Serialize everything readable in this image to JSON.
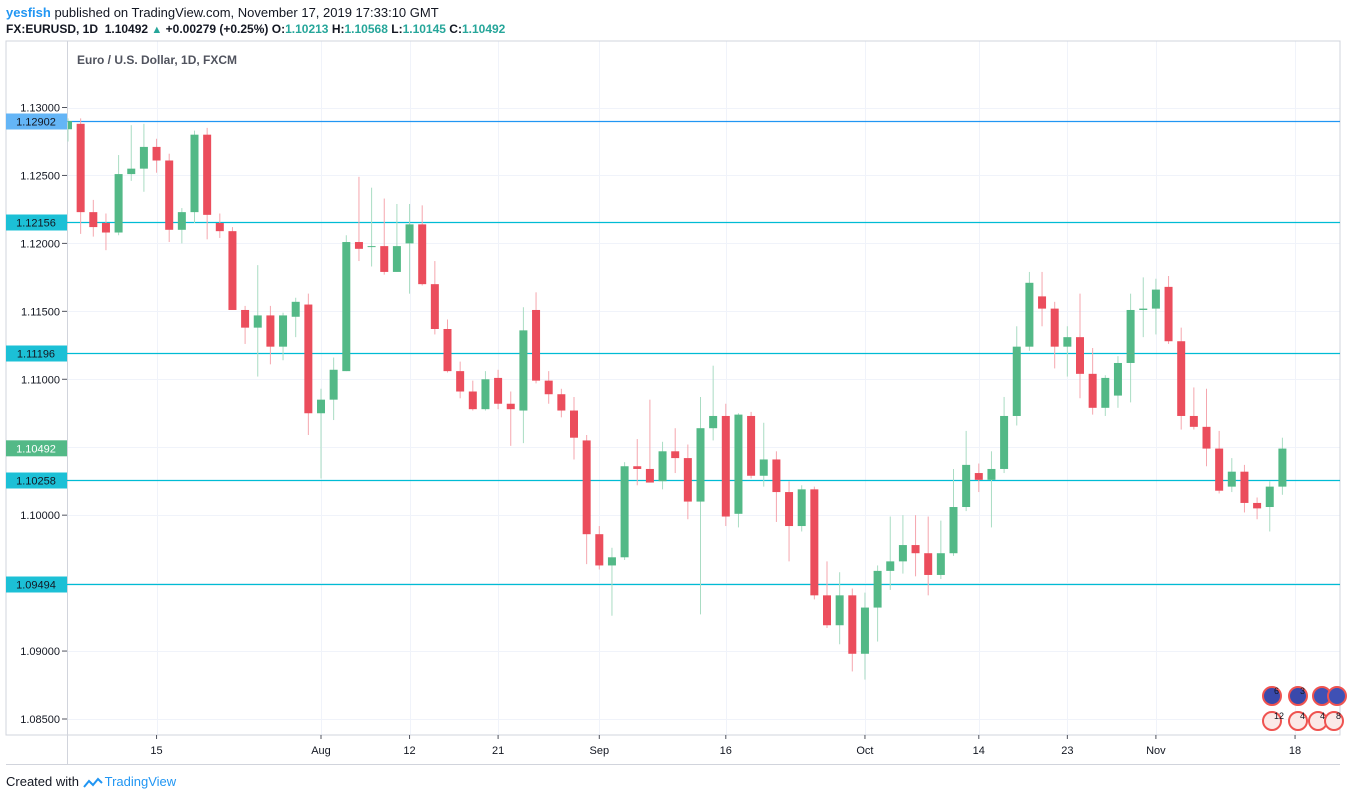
{
  "header": {
    "author": "yesfish",
    "published_text": "published on TradingView.com, November 17, 2019 17:33:10 GMT",
    "symbol": "FX:EURUSD, 1D",
    "last_price": "1.10492",
    "up_arrow": "▲",
    "change": "+0.00279 (+0.25%)",
    "o_label": "O:",
    "o_value": "1.10213",
    "h_label": "H:",
    "h_value": "1.10568",
    "l_label": "L:",
    "l_value": "1.10145",
    "c_label": "C:",
    "c_value": "1.10492"
  },
  "footer": {
    "created_with": "Created with",
    "brand": "TradingView"
  },
  "colors": {
    "up": "#53b987",
    "down": "#eb4d5c",
    "hline": "#00bcd4",
    "top_hline": "#2196f3",
    "grid": "#f0f3fa",
    "last_price_bg": "#53b987"
  },
  "chart_data": {
    "type": "candlestick",
    "title": "Euro / U.S. Dollar, 1D, FXCM",
    "ylim": [
      1.0835,
      1.1325
    ],
    "y_ticks": [
      "1.13000",
      "1.12500",
      "1.12000",
      "1.11500",
      "1.11000",
      "1.10500",
      "1.10000",
      "1.09500",
      "1.09000",
      "1.08500"
    ],
    "x_ticks": [
      {
        "label": "15",
        "date": "2019-07-15"
      },
      {
        "label": "Aug",
        "date": "2019-08-01"
      },
      {
        "label": "12",
        "date": "2019-08-12"
      },
      {
        "label": "21",
        "date": "2019-08-21"
      },
      {
        "label": "Sep",
        "date": "2019-09-02"
      },
      {
        "label": "16",
        "date": "2019-09-16"
      },
      {
        "label": "Oct",
        "date": "2019-10-01"
      },
      {
        "label": "14",
        "date": "2019-10-14"
      },
      {
        "label": "23",
        "date": "2019-10-23"
      },
      {
        "label": "Nov",
        "date": "2019-11-01"
      },
      {
        "label": "18",
        "date": "2019-11-18"
      }
    ],
    "horizontal_lines": [
      {
        "value": "1.12902",
        "style": "top"
      },
      {
        "value": "1.12156",
        "style": "level"
      },
      {
        "value": "1.11196",
        "style": "level"
      },
      {
        "value": "1.10258",
        "style": "level"
      },
      {
        "value": "1.09494",
        "style": "level"
      }
    ],
    "last_price_label": "1.10492",
    "candles": [
      {
        "date": "2019-07-04",
        "o": 1.1284,
        "h": 1.1292,
        "l": 1.1275,
        "c": 1.129
      },
      {
        "date": "2019-07-05",
        "o": 1.1288,
        "h": 1.1292,
        "l": 1.1207,
        "c": 1.1223
      },
      {
        "date": "2019-07-08",
        "o": 1.1223,
        "h": 1.1232,
        "l": 1.1205,
        "c": 1.1212
      },
      {
        "date": "2019-07-09",
        "o": 1.1215,
        "h": 1.1222,
        "l": 1.1195,
        "c": 1.1208
      },
      {
        "date": "2019-07-10",
        "o": 1.1208,
        "h": 1.1265,
        "l": 1.1206,
        "c": 1.1251
      },
      {
        "date": "2019-07-11",
        "o": 1.1251,
        "h": 1.1287,
        "l": 1.1246,
        "c": 1.1255
      },
      {
        "date": "2019-07-12",
        "o": 1.1255,
        "h": 1.1288,
        "l": 1.1238,
        "c": 1.1271
      },
      {
        "date": "2019-07-15",
        "o": 1.1271,
        "h": 1.1277,
        "l": 1.1252,
        "c": 1.1261
      },
      {
        "date": "2019-07-16",
        "o": 1.1261,
        "h": 1.1266,
        "l": 1.1201,
        "c": 1.121
      },
      {
        "date": "2019-07-17",
        "o": 1.121,
        "h": 1.1226,
        "l": 1.12,
        "c": 1.1223
      },
      {
        "date": "2019-07-18",
        "o": 1.1223,
        "h": 1.1283,
        "l": 1.1215,
        "c": 1.128
      },
      {
        "date": "2019-07-19",
        "o": 1.128,
        "h": 1.1285,
        "l": 1.1203,
        "c": 1.1221
      },
      {
        "date": "2019-07-22",
        "o": 1.1215,
        "h": 1.1222,
        "l": 1.1204,
        "c": 1.1209
      },
      {
        "date": "2019-07-23",
        "o": 1.1209,
        "h": 1.1212,
        "l": 1.1153,
        "c": 1.1151
      },
      {
        "date": "2019-07-24",
        "o": 1.1151,
        "h": 1.1154,
        "l": 1.1126,
        "c": 1.1138
      },
      {
        "date": "2019-07-25",
        "o": 1.1138,
        "h": 1.1184,
        "l": 1.1102,
        "c": 1.1147
      },
      {
        "date": "2019-07-26",
        "o": 1.1147,
        "h": 1.1154,
        "l": 1.1111,
        "c": 1.1124
      },
      {
        "date": "2019-07-29",
        "o": 1.1124,
        "h": 1.1149,
        "l": 1.1114,
        "c": 1.1147
      },
      {
        "date": "2019-07-30",
        "o": 1.1146,
        "h": 1.116,
        "l": 1.1131,
        "c": 1.1157
      },
      {
        "date": "2019-07-31",
        "o": 1.1155,
        "h": 1.1163,
        "l": 1.1059,
        "c": 1.1075
      },
      {
        "date": "2019-08-01",
        "o": 1.1075,
        "h": 1.1093,
        "l": 1.1027,
        "c": 1.1085
      },
      {
        "date": "2019-08-02",
        "o": 1.1085,
        "h": 1.1116,
        "l": 1.107,
        "c": 1.1107
      },
      {
        "date": "2019-08-05",
        "o": 1.1106,
        "h": 1.1206,
        "l": 1.1106,
        "c": 1.1201
      },
      {
        "date": "2019-08-06",
        "o": 1.1201,
        "h": 1.1249,
        "l": 1.1187,
        "c": 1.1196
      },
      {
        "date": "2019-08-07",
        "o": 1.1198,
        "h": 1.1241,
        "l": 1.1183,
        "c": 1.1198
      },
      {
        "date": "2019-08-08",
        "o": 1.1198,
        "h": 1.1233,
        "l": 1.1177,
        "c": 1.1179
      },
      {
        "date": "2019-08-09",
        "o": 1.1179,
        "h": 1.1229,
        "l": 1.1179,
        "c": 1.1198
      },
      {
        "date": "2019-08-12",
        "o": 1.12,
        "h": 1.1229,
        "l": 1.1163,
        "c": 1.1214
      },
      {
        "date": "2019-08-13",
        "o": 1.1214,
        "h": 1.1228,
        "l": 1.1169,
        "c": 1.117
      },
      {
        "date": "2019-08-14",
        "o": 1.117,
        "h": 1.1187,
        "l": 1.1133,
        "c": 1.1137
      },
      {
        "date": "2019-08-15",
        "o": 1.1137,
        "h": 1.1144,
        "l": 1.1105,
        "c": 1.1106
      },
      {
        "date": "2019-08-16",
        "o": 1.1106,
        "h": 1.1113,
        "l": 1.1086,
        "c": 1.1091
      },
      {
        "date": "2019-08-19",
        "o": 1.1091,
        "h": 1.1099,
        "l": 1.1077,
        "c": 1.1078
      },
      {
        "date": "2019-08-20",
        "o": 1.1078,
        "h": 1.1106,
        "l": 1.1077,
        "c": 1.11
      },
      {
        "date": "2019-08-21",
        "o": 1.1101,
        "h": 1.1107,
        "l": 1.1078,
        "c": 1.1082
      },
      {
        "date": "2019-08-22",
        "o": 1.1082,
        "h": 1.1091,
        "l": 1.1051,
        "c": 1.1078
      },
      {
        "date": "2019-08-23",
        "o": 1.1077,
        "h": 1.1153,
        "l": 1.1053,
        "c": 1.1136
      },
      {
        "date": "2019-08-26",
        "o": 1.1151,
        "h": 1.1164,
        "l": 1.1097,
        "c": 1.1099
      },
      {
        "date": "2019-08-27",
        "o": 1.1099,
        "h": 1.1106,
        "l": 1.1082,
        "c": 1.1089
      },
      {
        "date": "2019-08-28",
        "o": 1.1089,
        "h": 1.1093,
        "l": 1.1072,
        "c": 1.1077
      },
      {
        "date": "2019-08-29",
        "o": 1.1077,
        "h": 1.1087,
        "l": 1.1041,
        "c": 1.1057
      },
      {
        "date": "2019-08-30",
        "o": 1.1055,
        "h": 1.1059,
        "l": 1.0964,
        "c": 1.0986
      },
      {
        "date": "2019-09-02",
        "o": 1.0986,
        "h": 1.0992,
        "l": 1.096,
        "c": 1.0963
      },
      {
        "date": "2019-09-03",
        "o": 1.0963,
        "h": 1.0976,
        "l": 1.0926,
        "c": 1.0969
      },
      {
        "date": "2019-09-04",
        "o": 1.0969,
        "h": 1.1039,
        "l": 1.0967,
        "c": 1.1036
      },
      {
        "date": "2019-09-05",
        "o": 1.1036,
        "h": 1.1056,
        "l": 1.1022,
        "c": 1.1034
      },
      {
        "date": "2019-09-06",
        "o": 1.1034,
        "h": 1.1085,
        "l": 1.1024,
        "c": 1.1024
      },
      {
        "date": "2019-09-09",
        "o": 1.1025,
        "h": 1.1054,
        "l": 1.1019,
        "c": 1.1047
      },
      {
        "date": "2019-09-10",
        "o": 1.1047,
        "h": 1.1064,
        "l": 1.1031,
        "c": 1.1042
      },
      {
        "date": "2019-09-11",
        "o": 1.1042,
        "h": 1.1052,
        "l": 1.0997,
        "c": 1.101
      },
      {
        "date": "2019-09-12",
        "o": 1.101,
        "h": 1.1087,
        "l": 1.0927,
        "c": 1.1064
      },
      {
        "date": "2019-09-13",
        "o": 1.1064,
        "h": 1.111,
        "l": 1.1055,
        "c": 1.1073
      },
      {
        "date": "2019-09-16",
        "o": 1.1073,
        "h": 1.1082,
        "l": 1.0992,
        "c": 1.0999
      },
      {
        "date": "2019-09-17",
        "o": 1.1001,
        "h": 1.1075,
        "l": 1.0991,
        "c": 1.1074
      },
      {
        "date": "2019-09-18",
        "o": 1.1073,
        "h": 1.1076,
        "l": 1.1027,
        "c": 1.1029
      },
      {
        "date": "2019-09-19",
        "o": 1.1029,
        "h": 1.1068,
        "l": 1.1021,
        "c": 1.1041
      },
      {
        "date": "2019-09-20",
        "o": 1.1041,
        "h": 1.1047,
        "l": 1.0995,
        "c": 1.1017
      },
      {
        "date": "2019-09-23",
        "o": 1.1017,
        "h": 1.1025,
        "l": 1.0966,
        "c": 1.0992
      },
      {
        "date": "2019-09-24",
        "o": 1.0992,
        "h": 1.1022,
        "l": 1.0988,
        "c": 1.1019
      },
      {
        "date": "2019-09-25",
        "o": 1.1019,
        "h": 1.1021,
        "l": 1.0938,
        "c": 1.0941
      },
      {
        "date": "2019-09-26",
        "o": 1.0941,
        "h": 1.0966,
        "l": 1.0917,
        "c": 1.0919
      },
      {
        "date": "2019-09-27",
        "o": 1.0919,
        "h": 1.0958,
        "l": 1.0905,
        "c": 1.0941
      },
      {
        "date": "2019-09-30",
        "o": 1.0941,
        "h": 1.0946,
        "l": 1.0885,
        "c": 1.0898
      },
      {
        "date": "2019-10-01",
        "o": 1.0898,
        "h": 1.0943,
        "l": 1.0879,
        "c": 1.0932
      },
      {
        "date": "2019-10-02",
        "o": 1.0932,
        "h": 1.0963,
        "l": 1.0907,
        "c": 1.0959
      },
      {
        "date": "2019-10-03",
        "o": 1.0959,
        "h": 1.0999,
        "l": 1.0945,
        "c": 1.0966
      },
      {
        "date": "2019-10-04",
        "o": 1.0966,
        "h": 1.1,
        "l": 1.0957,
        "c": 1.0978
      },
      {
        "date": "2019-10-07",
        "o": 1.0978,
        "h": 1.1,
        "l": 1.0955,
        "c": 1.0972
      },
      {
        "date": "2019-10-08",
        "o": 1.0972,
        "h": 1.0999,
        "l": 1.0941,
        "c": 1.0956
      },
      {
        "date": "2019-10-09",
        "o": 1.0956,
        "h": 1.0996,
        "l": 1.0953,
        "c": 1.0972
      },
      {
        "date": "2019-10-10",
        "o": 1.0972,
        "h": 1.1034,
        "l": 1.097,
        "c": 1.1006
      },
      {
        "date": "2019-10-11",
        "o": 1.1006,
        "h": 1.1062,
        "l": 1.1003,
        "c": 1.1037
      },
      {
        "date": "2019-10-14",
        "o": 1.1031,
        "h": 1.1038,
        "l": 1.1017,
        "c": 1.1026
      },
      {
        "date": "2019-10-15",
        "o": 1.1026,
        "h": 1.1047,
        "l": 1.0991,
        "c": 1.1034
      },
      {
        "date": "2019-10-16",
        "o": 1.1034,
        "h": 1.1087,
        "l": 1.1031,
        "c": 1.1073
      },
      {
        "date": "2019-10-17",
        "o": 1.1073,
        "h": 1.1139,
        "l": 1.1066,
        "c": 1.1124
      },
      {
        "date": "2019-10-18",
        "o": 1.1124,
        "h": 1.1179,
        "l": 1.1121,
        "c": 1.1171
      },
      {
        "date": "2019-10-21",
        "o": 1.1161,
        "h": 1.1179,
        "l": 1.1139,
        "c": 1.1152
      },
      {
        "date": "2019-10-22",
        "o": 1.1152,
        "h": 1.1157,
        "l": 1.1108,
        "c": 1.1124
      },
      {
        "date": "2019-10-23",
        "o": 1.1124,
        "h": 1.1139,
        "l": 1.1102,
        "c": 1.1131
      },
      {
        "date": "2019-10-24",
        "o": 1.1131,
        "h": 1.1163,
        "l": 1.1086,
        "c": 1.1104
      },
      {
        "date": "2019-10-25",
        "o": 1.1104,
        "h": 1.1123,
        "l": 1.1074,
        "c": 1.1079
      },
      {
        "date": "2019-10-28",
        "o": 1.1079,
        "h": 1.1103,
        "l": 1.1073,
        "c": 1.1101
      },
      {
        "date": "2019-10-29",
        "o": 1.1088,
        "h": 1.1117,
        "l": 1.1079,
        "c": 1.1112
      },
      {
        "date": "2019-10-30",
        "o": 1.1112,
        "h": 1.1163,
        "l": 1.1083,
        "c": 1.1151
      },
      {
        "date": "2019-10-31",
        "o": 1.1151,
        "h": 1.1175,
        "l": 1.1131,
        "c": 1.1152
      },
      {
        "date": "2019-11-01",
        "o": 1.1152,
        "h": 1.1174,
        "l": 1.1133,
        "c": 1.1166
      },
      {
        "date": "2019-11-04",
        "o": 1.1168,
        "h": 1.1176,
        "l": 1.1126,
        "c": 1.1128
      },
      {
        "date": "2019-11-05",
        "o": 1.1128,
        "h": 1.1138,
        "l": 1.1063,
        "c": 1.1073
      },
      {
        "date": "2019-11-06",
        "o": 1.1073,
        "h": 1.1094,
        "l": 1.1063,
        "c": 1.1065
      },
      {
        "date": "2019-11-07",
        "o": 1.1065,
        "h": 1.1093,
        "l": 1.1036,
        "c": 1.1049
      },
      {
        "date": "2019-11-08",
        "o": 1.1049,
        "h": 1.1062,
        "l": 1.1016,
        "c": 1.1018
      },
      {
        "date": "2019-11-11",
        "o": 1.1021,
        "h": 1.1042,
        "l": 1.1017,
        "c": 1.1032
      },
      {
        "date": "2019-11-12",
        "o": 1.1032,
        "h": 1.1037,
        "l": 1.1002,
        "c": 1.1009
      },
      {
        "date": "2019-11-13",
        "o": 1.1009,
        "h": 1.1013,
        "l": 1.0997,
        "c": 1.1005
      },
      {
        "date": "2019-11-14",
        "o": 1.1006,
        "h": 1.1025,
        "l": 1.0988,
        "c": 1.1021
      },
      {
        "date": "2019-11-15",
        "o": 1.1021,
        "h": 1.1057,
        "l": 1.1015,
        "c": 1.1049
      }
    ],
    "event_badges": [
      "6",
      "3",
      "12",
      "4",
      "4",
      "8"
    ]
  }
}
